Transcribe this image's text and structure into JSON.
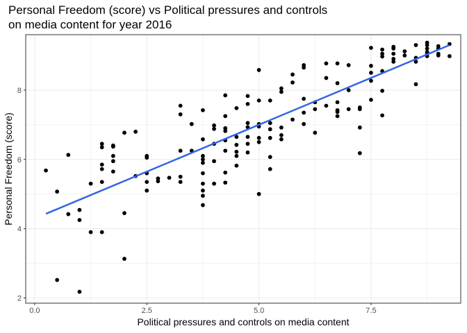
{
  "chart_data": {
    "type": "scatter",
    "title_line1": "Personal Freedom (score) vs Political pressures and controls",
    "title_line2": "on media content for year 2016",
    "xlabel": "Political pressures and controls on media content",
    "ylabel": "Personal Freedom (score)",
    "xlim": [
      -0.2,
      9.5
    ],
    "ylim": [
      1.85,
      9.6
    ],
    "x_ticks": [
      0,
      2.5,
      5,
      7.5
    ],
    "x_tick_labels": [
      "0.0",
      "2.5",
      "5.0",
      "7.5"
    ],
    "y_ticks": [
      2,
      4,
      6,
      8
    ],
    "y_tick_labels": [
      "2",
      "4",
      "6",
      "8"
    ],
    "grid": true,
    "colors": {
      "points": "#000000",
      "trend": "#3366e6",
      "grid": "#ebebeb",
      "panel_border": "#333333"
    },
    "trend_line": {
      "x": [
        0.25,
        9.25
      ],
      "y": [
        4.43,
        9.3
      ]
    },
    "points": [
      [
        0.25,
        5.68
      ],
      [
        0.5,
        5.07
      ],
      [
        0.5,
        2.52
      ],
      [
        0.75,
        6.13
      ],
      [
        0.75,
        4.42
      ],
      [
        1.0,
        4.54
      ],
      [
        1.0,
        4.25
      ],
      [
        1.0,
        2.18
      ],
      [
        1.25,
        5.3
      ],
      [
        1.25,
        3.9
      ],
      [
        1.5,
        6.45
      ],
      [
        1.5,
        6.35
      ],
      [
        1.5,
        5.85
      ],
      [
        1.5,
        5.72
      ],
      [
        1.5,
        5.35
      ],
      [
        1.5,
        3.9
      ],
      [
        1.75,
        6.4
      ],
      [
        1.75,
        6.37
      ],
      [
        1.75,
        6.1
      ],
      [
        1.75,
        5.95
      ],
      [
        1.75,
        5.65
      ],
      [
        2.0,
        6.77
      ],
      [
        2.0,
        4.45
      ],
      [
        2.0,
        3.13
      ],
      [
        2.25,
        6.8
      ],
      [
        2.25,
        5.52
      ],
      [
        2.5,
        6.1
      ],
      [
        2.5,
        6.05
      ],
      [
        2.5,
        5.6
      ],
      [
        2.5,
        5.35
      ],
      [
        2.5,
        5.1
      ],
      [
        2.75,
        5.45
      ],
      [
        2.75,
        5.37
      ],
      [
        3.0,
        5.47
      ],
      [
        3.25,
        7.55
      ],
      [
        3.25,
        7.3
      ],
      [
        3.25,
        6.25
      ],
      [
        3.25,
        5.5
      ],
      [
        3.25,
        5.35
      ],
      [
        3.5,
        7.02
      ],
      [
        3.5,
        6.25
      ],
      [
        3.75,
        7.42
      ],
      [
        3.75,
        6.58
      ],
      [
        3.75,
        6.1
      ],
      [
        3.75,
        6.0
      ],
      [
        3.75,
        5.9
      ],
      [
        3.75,
        5.6
      ],
      [
        3.75,
        5.3
      ],
      [
        3.75,
        5.1
      ],
      [
        3.75,
        4.95
      ],
      [
        3.75,
        4.68
      ],
      [
        4.0,
        6.98
      ],
      [
        4.0,
        6.88
      ],
      [
        4.0,
        6.45
      ],
      [
        4.0,
        5.95
      ],
      [
        4.0,
        5.3
      ],
      [
        4.25,
        7.85
      ],
      [
        4.25,
        7.25
      ],
      [
        4.25,
        6.9
      ],
      [
        4.25,
        6.82
      ],
      [
        4.25,
        6.55
      ],
      [
        4.25,
        6.25
      ],
      [
        4.25,
        5.62
      ],
      [
        4.25,
        5.33
      ],
      [
        4.5,
        7.48
      ],
      [
        4.5,
        6.65
      ],
      [
        4.5,
        6.42
      ],
      [
        4.5,
        6.22
      ],
      [
        4.5,
        6.1
      ],
      [
        4.5,
        5.82
      ],
      [
        4.75,
        7.83
      ],
      [
        4.75,
        7.6
      ],
      [
        4.75,
        7.05
      ],
      [
        4.75,
        6.93
      ],
      [
        4.75,
        6.65
      ],
      [
        4.75,
        6.45
      ],
      [
        4.75,
        6.2
      ],
      [
        5.0,
        8.58
      ],
      [
        5.0,
        7.7
      ],
      [
        5.0,
        7.02
      ],
      [
        5.0,
        6.95
      ],
      [
        5.0,
        6.62
      ],
      [
        5.0,
        6.5
      ],
      [
        5.0,
        5.0
      ],
      [
        5.25,
        7.7
      ],
      [
        5.25,
        7.05
      ],
      [
        5.25,
        6.87
      ],
      [
        5.25,
        6.62
      ],
      [
        5.25,
        6.07
      ],
      [
        5.25,
        5.72
      ],
      [
        5.5,
        8.05
      ],
      [
        5.5,
        7.95
      ],
      [
        5.5,
        6.92
      ],
      [
        5.5,
        6.7
      ],
      [
        5.5,
        6.58
      ],
      [
        5.75,
        8.45
      ],
      [
        5.75,
        8.22
      ],
      [
        5.75,
        7.15
      ],
      [
        6.0,
        8.72
      ],
      [
        6.0,
        8.65
      ],
      [
        6.0,
        7.75
      ],
      [
        6.0,
        7.35
      ],
      [
        6.0,
        7.02
      ],
      [
        6.25,
        7.65
      ],
      [
        6.25,
        7.45
      ],
      [
        6.25,
        6.77
      ],
      [
        6.5,
        8.77
      ],
      [
        6.5,
        8.35
      ],
      [
        6.5,
        7.55
      ],
      [
        6.75,
        8.77
      ],
      [
        6.75,
        8.2
      ],
      [
        6.75,
        7.65
      ],
      [
        6.75,
        7.42
      ],
      [
        6.75,
        7.37
      ],
      [
        6.75,
        7.25
      ],
      [
        7.0,
        8.72
      ],
      [
        7.0,
        8.0
      ],
      [
        7.0,
        7.45
      ],
      [
        7.25,
        7.5
      ],
      [
        7.25,
        7.45
      ],
      [
        7.25,
        6.92
      ],
      [
        7.25,
        6.18
      ],
      [
        7.5,
        9.22
      ],
      [
        7.5,
        8.7
      ],
      [
        7.5,
        8.5
      ],
      [
        7.5,
        8.27
      ],
      [
        7.5,
        7.72
      ],
      [
        7.75,
        9.17
      ],
      [
        7.75,
        9.05
      ],
      [
        7.75,
        8.97
      ],
      [
        7.75,
        8.55
      ],
      [
        7.75,
        7.98
      ],
      [
        7.75,
        7.27
      ],
      [
        8.0,
        9.25
      ],
      [
        8.0,
        9.2
      ],
      [
        8.0,
        9.05
      ],
      [
        8.0,
        8.9
      ],
      [
        8.0,
        8.82
      ],
      [
        8.25,
        9.12
      ],
      [
        8.25,
        9.0
      ],
      [
        8.5,
        9.3
      ],
      [
        8.5,
        8.93
      ],
      [
        8.5,
        8.82
      ],
      [
        8.5,
        8.17
      ],
      [
        8.75,
        9.37
      ],
      [
        8.75,
        9.3
      ],
      [
        8.75,
        9.2
      ],
      [
        8.75,
        9.1
      ],
      [
        8.75,
        9.05
      ],
      [
        8.75,
        8.98
      ],
      [
        9.0,
        9.27
      ],
      [
        9.0,
        9.2
      ],
      [
        9.0,
        9.05
      ],
      [
        9.0,
        9.0
      ],
      [
        9.25,
        9.33
      ],
      [
        9.25,
        8.98
      ]
    ]
  }
}
